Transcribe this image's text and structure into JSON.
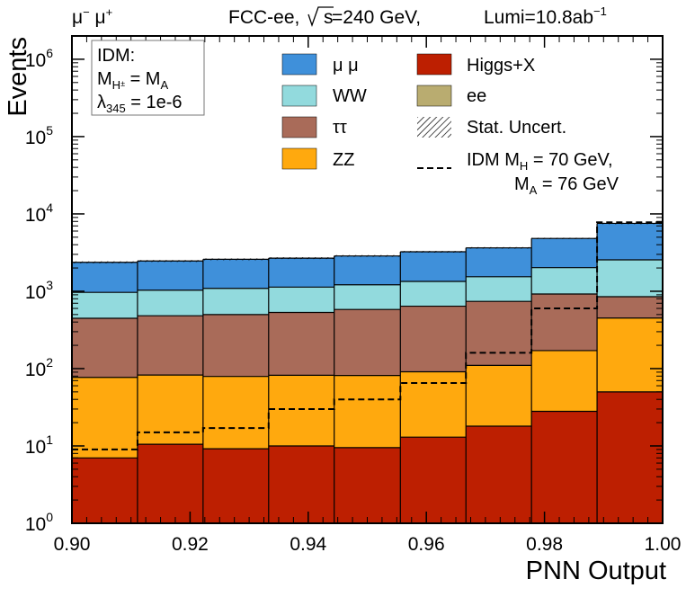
{
  "chart_data": {
    "type": "stacked-histogram",
    "xlabel": "PNN Output",
    "ylabel": "Events",
    "yscale": "log",
    "xlim": [
      0.9,
      1.0
    ],
    "ylim": [
      1,
      2000000
    ],
    "bin_edges": [
      0.9,
      0.9111,
      0.9222,
      0.9333,
      0.9444,
      0.9556,
      0.9667,
      0.9778,
      0.9889,
      1.0
    ],
    "x_ticks": [
      "0.90",
      "0.92",
      "0.94",
      "0.96",
      "0.98",
      "1.00"
    ],
    "x_tick_values": [
      0.9,
      0.92,
      0.94,
      0.96,
      0.98,
      1.0
    ],
    "y_ticks": [
      {
        "base": "10",
        "exp": "0",
        "value": 1
      },
      {
        "base": "10",
        "exp": "1",
        "value": 10
      },
      {
        "base": "10",
        "exp": "2",
        "value": 100
      },
      {
        "base": "10",
        "exp": "3",
        "value": 1000
      },
      {
        "base": "10",
        "exp": "4",
        "value": 10000
      },
      {
        "base": "10",
        "exp": "5",
        "value": 100000
      },
      {
        "base": "10",
        "exp": "6",
        "value": 1000000
      }
    ],
    "stack_order_bottom_to_top": [
      "higgsx",
      "zz",
      "tautau",
      "ww",
      "mumu"
    ],
    "series": [
      {
        "id": "higgsx",
        "name": "Higgs+X",
        "color": "#bd1f01",
        "values": [
          7,
          10.5,
          9.2,
          10,
          9.5,
          13,
          18,
          28,
          50
        ]
      },
      {
        "id": "zz",
        "name": "ZZ",
        "color": "#ffa90e",
        "values": [
          70,
          72,
          70,
          72,
          72,
          78,
          92,
          143,
          400
        ]
      },
      {
        "id": "tautau",
        "name": "ττ",
        "color": "#a96b59",
        "values": [
          370,
          400,
          420,
          450,
          500,
          550,
          630,
          750,
          400
        ]
      },
      {
        "id": "ww",
        "name": "WW",
        "color": "#92dadd",
        "values": [
          520,
          550,
          590,
          600,
          630,
          700,
          800,
          1100,
          1700
        ]
      },
      {
        "id": "mumu",
        "name": "μ μ",
        "color": "#3f90da",
        "values": [
          1400,
          1430,
          1500,
          1550,
          1650,
          1900,
          2100,
          2800,
          5000
        ]
      },
      {
        "id": "ee",
        "name": "ee",
        "color": "#b9ac70",
        "values": [
          0,
          0,
          0,
          0,
          0,
          0,
          0,
          0,
          0
        ]
      }
    ],
    "signal": {
      "name_line1": "IDM M",
      "name_line1_sub": "H",
      "name_line1_rest": " = 70 GeV,",
      "name_line2": "M",
      "name_line2_sub": "A",
      "name_line2_rest": " = 76 GeV",
      "values": [
        9,
        15,
        17,
        30,
        40,
        65,
        160,
        600,
        7800
      ]
    },
    "stat_uncert_label": "Stat. Uncert.",
    "header": {
      "channel_parts": [
        "μ",
        "−",
        " μ",
        "+"
      ],
      "experiment": "FCC-ee,",
      "sqrt_s_rest": "s",
      "energy": " =240 GeV,",
      "lumi": "Lumi=10.8ab",
      "lumi_exp": "−1"
    },
    "idm_box": {
      "title": "IDM:",
      "line2_main": "M",
      "line2_sub": "H",
      "line2_supsub": "±",
      "line2_rest": " = M",
      "line2_sub2": "A",
      "line3_main": "λ",
      "line3_sub": "345",
      "line3_rest": " = 1e-6"
    }
  }
}
